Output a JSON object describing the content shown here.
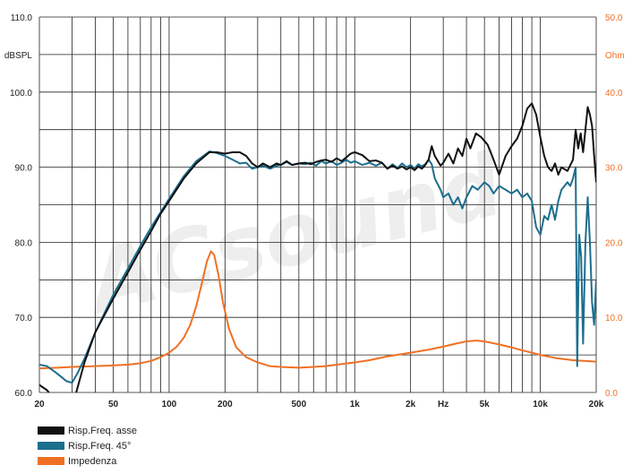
{
  "chart_data": {
    "type": "line",
    "left_axis": {
      "unit": "dBSPL",
      "range": [
        60,
        110
      ],
      "ticks": [
        {
          "value": 60,
          "label": "60.0"
        },
        {
          "value": 70,
          "label": "70.0"
        },
        {
          "value": 80,
          "label": "80.0"
        },
        {
          "value": 90,
          "label": "90.0"
        },
        {
          "value": 100,
          "label": "100.0"
        },
        {
          "value": 110,
          "label": "110.0"
        }
      ]
    },
    "right_axis": {
      "unit": "Ohm",
      "range": [
        0,
        50
      ],
      "ticks": [
        {
          "value": 0,
          "label": "0.0"
        },
        {
          "value": 10,
          "label": "10.0"
        },
        {
          "value": 20,
          "label": "20.0"
        },
        {
          "value": 30,
          "label": "30.0"
        },
        {
          "value": 40,
          "label": "40.0"
        },
        {
          "value": 50,
          "label": "50.0"
        }
      ]
    },
    "x_axis": {
      "scale": "log",
      "unit": "Hz",
      "range": [
        20,
        20000
      ],
      "ticks": [
        {
          "value": 20,
          "label": "20"
        },
        {
          "value": 50,
          "label": "50"
        },
        {
          "value": 100,
          "label": "100"
        },
        {
          "value": 200,
          "label": "200"
        },
        {
          "value": 500,
          "label": "500"
        },
        {
          "value": 1000,
          "label": "1k"
        },
        {
          "value": 2000,
          "label": "2k"
        },
        {
          "value": 5000,
          "label": "5k"
        },
        {
          "value": 10000,
          "label": "10k"
        },
        {
          "value": 20000,
          "label": "20k"
        }
      ]
    },
    "grid": true,
    "watermark": "ACsound",
    "legend_position": "bottom-left",
    "series": [
      {
        "name": "Risp.Freq. asse",
        "color": "#111111",
        "axis": "left",
        "points": [
          [
            20,
            61
          ],
          [
            22,
            60.3
          ],
          [
            25,
            58.5
          ],
          [
            30,
            58
          ],
          [
            35,
            64
          ],
          [
            40,
            68
          ],
          [
            50,
            72.5
          ],
          [
            60,
            76
          ],
          [
            70,
            79
          ],
          [
            80,
            81.5
          ],
          [
            90,
            83.8
          ],
          [
            100,
            85.5
          ],
          [
            120,
            88.5
          ],
          [
            140,
            90.5
          ],
          [
            165,
            92
          ],
          [
            180,
            92
          ],
          [
            200,
            91.8
          ],
          [
            220,
            92
          ],
          [
            240,
            92
          ],
          [
            260,
            91.5
          ],
          [
            280,
            90.5
          ],
          [
            300,
            90
          ],
          [
            320,
            90.5
          ],
          [
            350,
            90
          ],
          [
            380,
            90.5
          ],
          [
            400,
            90.3
          ],
          [
            430,
            90.8
          ],
          [
            460,
            90.3
          ],
          [
            500,
            90.5
          ],
          [
            540,
            90.6
          ],
          [
            580,
            90.4
          ],
          [
            620,
            90.7
          ],
          [
            660,
            90.9
          ],
          [
            700,
            91
          ],
          [
            750,
            90.7
          ],
          [
            800,
            91.2
          ],
          [
            850,
            90.8
          ],
          [
            900,
            91.3
          ],
          [
            950,
            91.8
          ],
          [
            1000,
            92
          ],
          [
            1100,
            91.6
          ],
          [
            1200,
            90.8
          ],
          [
            1300,
            90.9
          ],
          [
            1400,
            90.6
          ],
          [
            1500,
            89.8
          ],
          [
            1600,
            90.2
          ],
          [
            1700,
            89.8
          ],
          [
            1800,
            90.1
          ],
          [
            1900,
            89.7
          ],
          [
            2000,
            90
          ],
          [
            2100,
            89.6
          ],
          [
            2200,
            90.1
          ],
          [
            2300,
            89.8
          ],
          [
            2400,
            90.3
          ],
          [
            2500,
            91
          ],
          [
            2600,
            92.8
          ],
          [
            2700,
            91.5
          ],
          [
            2900,
            90.2
          ],
          [
            3000,
            90.6
          ],
          [
            3200,
            91.8
          ],
          [
            3400,
            90.5
          ],
          [
            3600,
            92.5
          ],
          [
            3800,
            91.5
          ],
          [
            4000,
            93.8
          ],
          [
            4200,
            92.5
          ],
          [
            4500,
            94.5
          ],
          [
            4800,
            94
          ],
          [
            5200,
            93
          ],
          [
            5500,
            91.5
          ],
          [
            6000,
            89
          ],
          [
            6500,
            91.5
          ],
          [
            7000,
            92.8
          ],
          [
            7500,
            93.8
          ],
          [
            8000,
            95.5
          ],
          [
            8500,
            97.8
          ],
          [
            9000,
            98.5
          ],
          [
            9500,
            97
          ],
          [
            10000,
            94
          ],
          [
            10500,
            91.5
          ],
          [
            11000,
            90
          ],
          [
            11500,
            89.5
          ],
          [
            12000,
            90.5
          ],
          [
            12500,
            89
          ],
          [
            13000,
            90
          ],
          [
            14000,
            89.5
          ],
          [
            15000,
            91
          ],
          [
            15500,
            95
          ],
          [
            16000,
            92.5
          ],
          [
            16500,
            94.5
          ],
          [
            17000,
            92
          ],
          [
            17500,
            95
          ],
          [
            18000,
            98
          ],
          [
            18500,
            97
          ],
          [
            19000,
            95.5
          ],
          [
            19500,
            91.5
          ],
          [
            20000,
            88
          ]
        ]
      },
      {
        "name": "Risp.Freq. 45°",
        "color": "#1c6e8d",
        "axis": "left",
        "points": [
          [
            20,
            63.7
          ],
          [
            22,
            63.5
          ],
          [
            25,
            62.5
          ],
          [
            28,
            61.5
          ],
          [
            30,
            61.3
          ],
          [
            32,
            62.5
          ],
          [
            35,
            64.5
          ],
          [
            40,
            68
          ],
          [
            50,
            73
          ],
          [
            60,
            76.5
          ],
          [
            70,
            79.5
          ],
          [
            80,
            82
          ],
          [
            90,
            84
          ],
          [
            100,
            85.8
          ],
          [
            120,
            88.8
          ],
          [
            140,
            90.8
          ],
          [
            165,
            92.1
          ],
          [
            180,
            91.9
          ],
          [
            200,
            91.5
          ],
          [
            220,
            91
          ],
          [
            240,
            90.5
          ],
          [
            260,
            90.6
          ],
          [
            280,
            89.8
          ],
          [
            300,
            90
          ],
          [
            320,
            90.2
          ],
          [
            350,
            89.8
          ],
          [
            380,
            90.2
          ],
          [
            400,
            90.3
          ],
          [
            430,
            90.7
          ],
          [
            460,
            90.3
          ],
          [
            500,
            90.5
          ],
          [
            540,
            90.4
          ],
          [
            580,
            90.6
          ],
          [
            620,
            90.2
          ],
          [
            660,
            90.8
          ],
          [
            700,
            90.5
          ],
          [
            750,
            90.8
          ],
          [
            800,
            90.3
          ],
          [
            850,
            90.6
          ],
          [
            900,
            91
          ],
          [
            950,
            90.6
          ],
          [
            1000,
            90.8
          ],
          [
            1100,
            90.3
          ],
          [
            1200,
            90.6
          ],
          [
            1300,
            90.2
          ],
          [
            1400,
            90.6
          ],
          [
            1500,
            89.8
          ],
          [
            1600,
            90.4
          ],
          [
            1700,
            89.9
          ],
          [
            1800,
            90.5
          ],
          [
            1900,
            90
          ],
          [
            2000,
            90.3
          ],
          [
            2100,
            89.8
          ],
          [
            2200,
            90.4
          ],
          [
            2300,
            90.1
          ],
          [
            2400,
            90.4
          ],
          [
            2500,
            91
          ],
          [
            2600,
            90.4
          ],
          [
            2700,
            88.5
          ],
          [
            2900,
            87
          ],
          [
            3000,
            86
          ],
          [
            3200,
            86.5
          ],
          [
            3400,
            85
          ],
          [
            3600,
            86
          ],
          [
            3800,
            84.5
          ],
          [
            4000,
            86
          ],
          [
            4300,
            87.5
          ],
          [
            4600,
            87
          ],
          [
            5000,
            88
          ],
          [
            5300,
            87.5
          ],
          [
            5600,
            86.5
          ],
          [
            6000,
            87.5
          ],
          [
            6500,
            87
          ],
          [
            7000,
            86.5
          ],
          [
            7500,
            87
          ],
          [
            8000,
            86
          ],
          [
            8500,
            86.5
          ],
          [
            9000,
            85.5
          ],
          [
            9500,
            82
          ],
          [
            10000,
            81
          ],
          [
            10500,
            83.5
          ],
          [
            11000,
            83
          ],
          [
            11500,
            85
          ],
          [
            12000,
            83
          ],
          [
            12500,
            85.5
          ],
          [
            13000,
            87
          ],
          [
            14000,
            88
          ],
          [
            14500,
            87.5
          ],
          [
            15000,
            88.5
          ],
          [
            15500,
            90
          ],
          [
            15800,
            63.5
          ],
          [
            16200,
            81
          ],
          [
            16600,
            78
          ],
          [
            17000,
            66.5
          ],
          [
            17500,
            80
          ],
          [
            18000,
            86
          ],
          [
            18500,
            80
          ],
          [
            19000,
            72
          ],
          [
            19500,
            69
          ],
          [
            20000,
            75
          ]
        ]
      },
      {
        "name": "Impedenza",
        "color": "#f07023",
        "axis": "right",
        "points": [
          [
            20,
            3.2
          ],
          [
            25,
            3.3
          ],
          [
            30,
            3.4
          ],
          [
            40,
            3.5
          ],
          [
            50,
            3.6
          ],
          [
            60,
            3.7
          ],
          [
            70,
            3.9
          ],
          [
            80,
            4.2
          ],
          [
            90,
            4.7
          ],
          [
            100,
            5.3
          ],
          [
            110,
            6.1
          ],
          [
            120,
            7.3
          ],
          [
            130,
            9
          ],
          [
            140,
            11.5
          ],
          [
            150,
            14.5
          ],
          [
            160,
            17.5
          ],
          [
            168,
            18.8
          ],
          [
            175,
            18.3
          ],
          [
            185,
            15.5
          ],
          [
            195,
            12
          ],
          [
            210,
            8.5
          ],
          [
            230,
            6
          ],
          [
            260,
            4.7
          ],
          [
            300,
            4
          ],
          [
            350,
            3.5
          ],
          [
            400,
            3.4
          ],
          [
            500,
            3.3
          ],
          [
            600,
            3.4
          ],
          [
            700,
            3.5
          ],
          [
            800,
            3.7
          ],
          [
            1000,
            4
          ],
          [
            1200,
            4.3
          ],
          [
            1500,
            4.8
          ],
          [
            2000,
            5.3
          ],
          [
            2500,
            5.7
          ],
          [
            3000,
            6.1
          ],
          [
            3500,
            6.5
          ],
          [
            4000,
            6.8
          ],
          [
            4500,
            6.9
          ],
          [
            5000,
            6.8
          ],
          [
            6000,
            6.4
          ],
          [
            7000,
            6
          ],
          [
            8000,
            5.6
          ],
          [
            9000,
            5.3
          ],
          [
            10000,
            5
          ],
          [
            12000,
            4.6
          ],
          [
            15000,
            4.3
          ],
          [
            20000,
            4.1
          ]
        ]
      }
    ]
  }
}
